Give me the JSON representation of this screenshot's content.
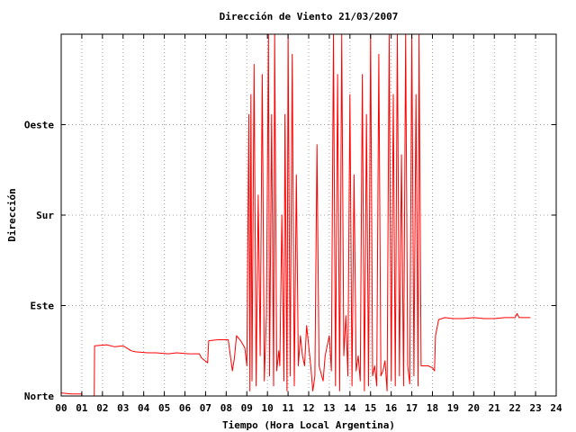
{
  "chart_data": {
    "type": "line",
    "title": "Dirección de Viento 21/03/2007",
    "xlabel": "Tiempo (Hora Local Argentina)",
    "ylabel": "Dirección",
    "x_ticks": [
      "00",
      "01",
      "02",
      "03",
      "04",
      "05",
      "06",
      "07",
      "08",
      "09",
      "10",
      "11",
      "12",
      "13",
      "14",
      "15",
      "16",
      "17",
      "18",
      "19",
      "20",
      "21",
      "22",
      "23",
      "24"
    ],
    "y_ticks": [
      "Norte",
      "Este",
      "Sur",
      "Oeste"
    ],
    "xlim": [
      0,
      24
    ],
    "ylim": [
      0,
      360
    ],
    "grid": true,
    "legend": "none",
    "colors": {
      "series": "#ff0000",
      "grid": "#a0a0a0",
      "frame": "#000000"
    },
    "series": [
      {
        "values": [
          [
            0.0,
            3
          ],
          [
            0.5,
            2
          ],
          [
            0.99,
            2
          ],
          [
            1.0,
            0
          ],
          [
            1.6,
            0
          ],
          [
            1.62,
            50
          ],
          [
            2.2,
            51
          ],
          [
            2.6,
            49
          ],
          [
            3.0,
            50
          ],
          [
            3.4,
            45
          ],
          [
            3.6,
            44
          ],
          [
            4.2,
            43
          ],
          [
            4.6,
            43
          ],
          [
            5.2,
            42
          ],
          [
            5.6,
            43
          ],
          [
            6.2,
            42
          ],
          [
            6.7,
            42
          ],
          [
            6.8,
            38
          ],
          [
            7.1,
            33
          ],
          [
            7.15,
            55
          ],
          [
            7.6,
            56
          ],
          [
            7.9,
            56
          ],
          [
            8.1,
            56
          ],
          [
            8.15,
            48
          ],
          [
            8.3,
            25
          ],
          [
            8.4,
            38
          ],
          [
            8.5,
            60
          ],
          [
            8.7,
            55
          ],
          [
            8.9,
            48
          ],
          [
            9.0,
            30
          ],
          [
            9.1,
            280
          ],
          [
            9.15,
            5
          ],
          [
            9.2,
            300
          ],
          [
            9.25,
            15
          ],
          [
            9.35,
            330
          ],
          [
            9.45,
            10
          ],
          [
            9.55,
            200
          ],
          [
            9.65,
            40
          ],
          [
            9.75,
            320
          ],
          [
            9.85,
            15
          ],
          [
            9.95,
            80
          ],
          [
            10.05,
            360
          ],
          [
            10.1,
            20
          ],
          [
            10.2,
            280
          ],
          [
            10.3,
            10
          ],
          [
            10.35,
            360
          ],
          [
            10.45,
            25
          ],
          [
            10.55,
            45
          ],
          [
            10.6,
            30
          ],
          [
            10.7,
            180
          ],
          [
            10.8,
            15
          ],
          [
            10.85,
            280
          ],
          [
            10.95,
            5
          ],
          [
            11.0,
            360
          ],
          [
            11.1,
            20
          ],
          [
            11.2,
            340
          ],
          [
            11.3,
            10
          ],
          [
            11.4,
            220
          ],
          [
            11.5,
            30
          ],
          [
            11.6,
            60
          ],
          [
            11.7,
            40
          ],
          [
            11.8,
            30
          ],
          [
            11.9,
            70
          ],
          [
            12.0,
            50
          ],
          [
            12.1,
            30
          ],
          [
            12.2,
            5
          ],
          [
            12.3,
            20
          ],
          [
            12.4,
            250
          ],
          [
            12.5,
            30
          ],
          [
            12.7,
            15
          ],
          [
            12.8,
            40
          ],
          [
            13.0,
            60
          ],
          [
            13.1,
            25
          ],
          [
            13.2,
            360
          ],
          [
            13.3,
            10
          ],
          [
            13.4,
            320
          ],
          [
            13.5,
            5
          ],
          [
            13.6,
            360
          ],
          [
            13.7,
            40
          ],
          [
            13.8,
            80
          ],
          [
            13.9,
            20
          ],
          [
            14.0,
            300
          ],
          [
            14.1,
            10
          ],
          [
            14.2,
            220
          ],
          [
            14.3,
            25
          ],
          [
            14.4,
            40
          ],
          [
            14.5,
            15
          ],
          [
            14.6,
            320
          ],
          [
            14.7,
            5
          ],
          [
            14.8,
            280
          ],
          [
            14.9,
            10
          ],
          [
            15.0,
            360
          ],
          [
            15.1,
            20
          ],
          [
            15.2,
            30
          ],
          [
            15.3,
            10
          ],
          [
            15.4,
            340
          ],
          [
            15.5,
            20
          ],
          [
            15.6,
            25
          ],
          [
            15.7,
            35
          ],
          [
            15.8,
            5
          ],
          [
            15.9,
            360
          ],
          [
            16.0,
            15
          ],
          [
            16.1,
            300
          ],
          [
            16.2,
            10
          ],
          [
            16.3,
            360
          ],
          [
            16.4,
            20
          ],
          [
            16.5,
            240
          ],
          [
            16.6,
            10
          ],
          [
            16.7,
            360
          ],
          [
            16.8,
            30
          ],
          [
            16.9,
            12
          ],
          [
            17.0,
            360
          ],
          [
            17.1,
            20
          ],
          [
            17.2,
            300
          ],
          [
            17.3,
            10
          ],
          [
            17.35,
            360
          ],
          [
            17.45,
            30
          ],
          [
            17.6,
            30
          ],
          [
            17.8,
            30
          ],
          [
            18.0,
            28
          ],
          [
            18.1,
            25
          ],
          [
            18.15,
            60
          ],
          [
            18.3,
            76
          ],
          [
            18.6,
            78
          ],
          [
            19.0,
            77
          ],
          [
            19.5,
            77
          ],
          [
            20.0,
            78
          ],
          [
            20.5,
            77
          ],
          [
            21.0,
            77
          ],
          [
            21.5,
            78
          ],
          [
            22.0,
            78
          ],
          [
            22.1,
            82
          ],
          [
            22.2,
            78
          ],
          [
            22.6,
            78
          ],
          [
            22.75,
            78
          ]
        ]
      }
    ]
  }
}
